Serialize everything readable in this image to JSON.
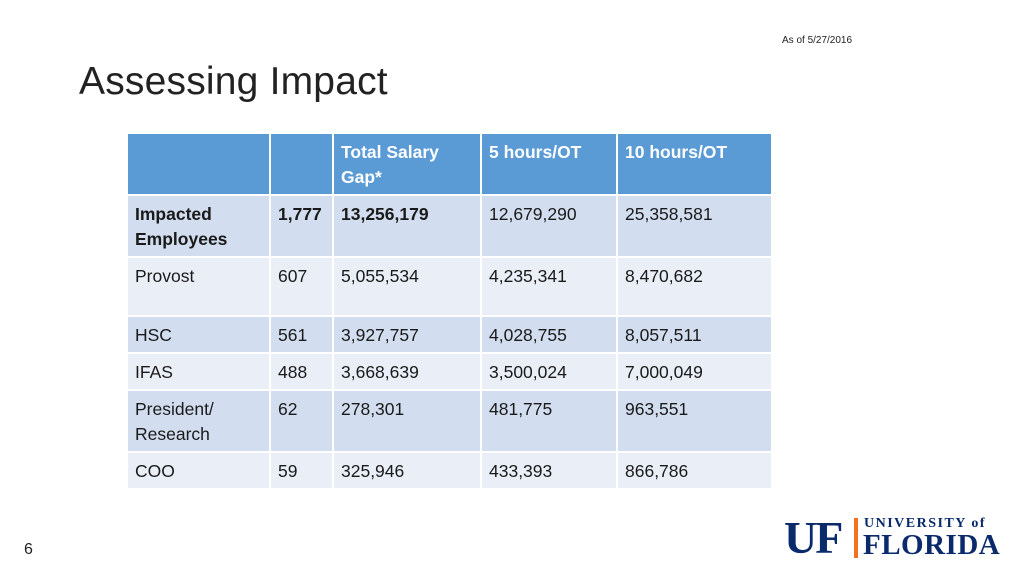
{
  "date_note": "As of 5/27/2016",
  "title": "Assessing Impact",
  "table": {
    "headers": [
      "",
      "",
      "Total Salary Gap*",
      "5 hours/OT",
      "10 hours/OT"
    ],
    "rows": [
      {
        "label": "Impacted Employees",
        "count": "1,777",
        "gap": "13,256,179",
        "ot5": "12,679,290",
        "ot10": "25,358,581"
      },
      {
        "label": "Provost",
        "count": "607",
        "gap": "5,055,534",
        "ot5": "4,235,341",
        "ot10": "8,470,682"
      },
      {
        "label": "HSC",
        "count": "561",
        "gap": "3,927,757",
        "ot5": "4,028,755",
        "ot10": "8,057,511"
      },
      {
        "label": "IFAS",
        "count": "488",
        "gap": "3,668,639",
        "ot5": "3,500,024",
        "ot10": "7,000,049"
      },
      {
        "label": "President/ Research",
        "count": "62",
        "gap": "278,301",
        "ot5": "481,775",
        "ot10": "963,551"
      },
      {
        "label": "COO",
        "count": "59",
        "gap": "325,946",
        "ot5": "433,393",
        "ot10": "866,786"
      }
    ]
  },
  "page_number": "6",
  "logo": {
    "initials": "UF",
    "line1": "UNIVERSITY of",
    "line2": "FLORIDA"
  }
}
